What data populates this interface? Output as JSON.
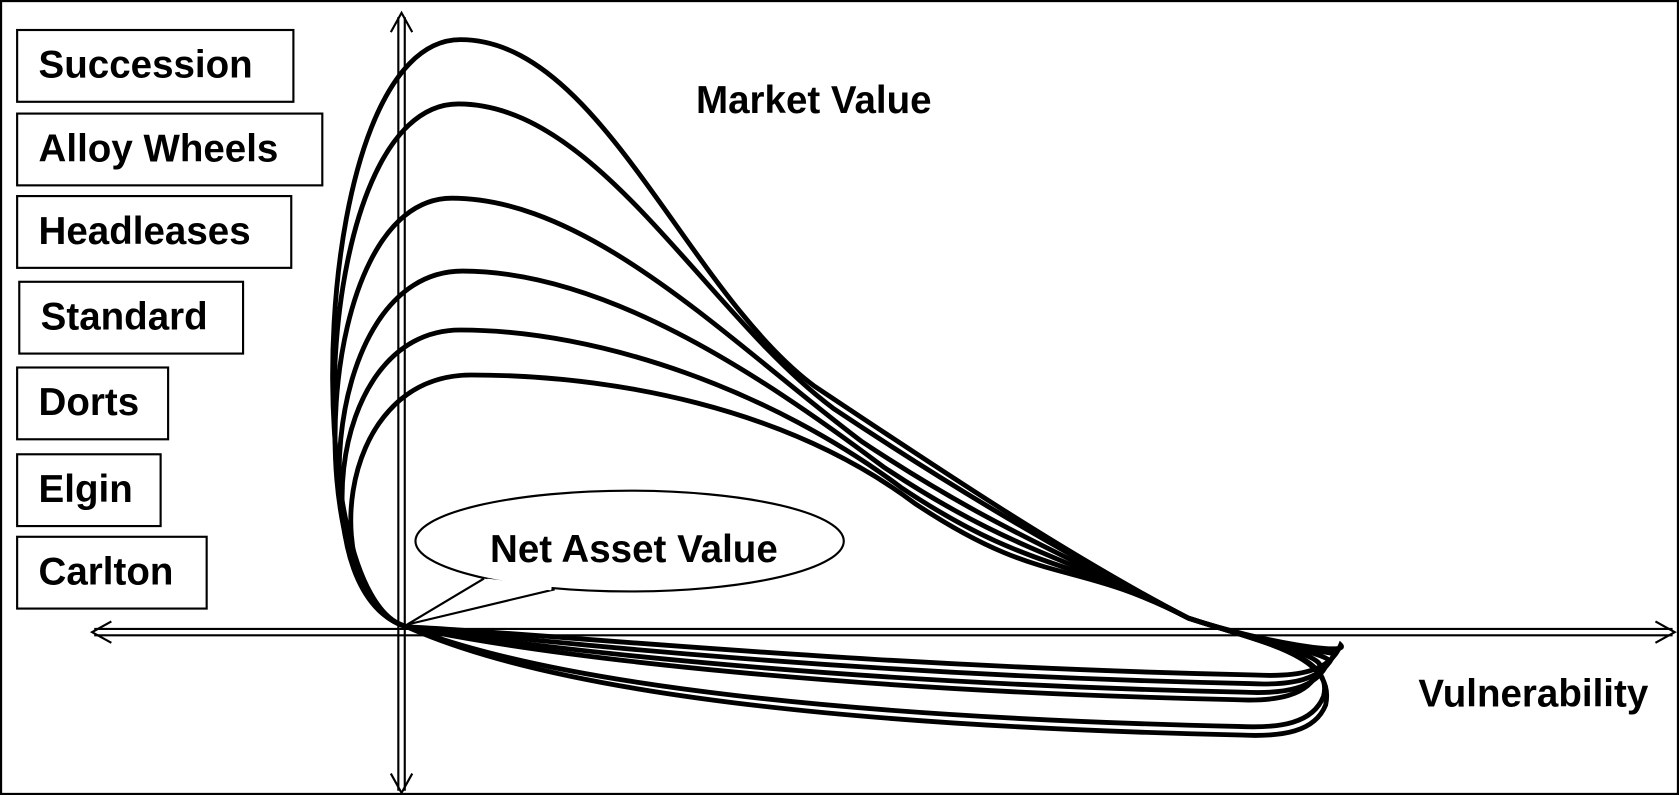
{
  "labels": [
    "Succession",
    "Alloy Wheels",
    "Headleases",
    "Standard",
    "Dorts",
    "Elgin",
    "Carlton"
  ],
  "y_axis_label": "Market Value",
  "x_axis_label": "Vulnerability",
  "callout": "Net Asset Value"
}
